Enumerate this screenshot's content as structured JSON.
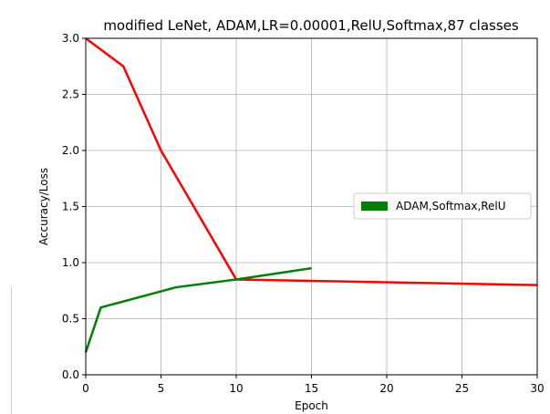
{
  "chart_data": {
    "type": "line",
    "title": "modified LeNet, ADAM,LR=0.00001,RelU,Softmax,87 classes",
    "xlabel": "Epoch",
    "ylabel": "Accuracy/Loss",
    "xlim": [
      0,
      30
    ],
    "ylim": [
      0.0,
      3.0
    ],
    "x_ticks": [
      "0",
      "5",
      "10",
      "15",
      "20",
      "25",
      "30"
    ],
    "y_ticks": [
      "0.0",
      "0.5",
      "1.0",
      "1.5",
      "2.0",
      "2.5",
      "3.0"
    ],
    "grid": true,
    "legend": {
      "placement": "right",
      "entries": [
        {
          "label": "ADAM,Softmax,RelU",
          "color": "#008000"
        }
      ]
    },
    "series": [
      {
        "color": "#ff0000",
        "x": [
          0,
          2.5,
          5,
          10,
          30
        ],
        "y": [
          3.0,
          2.75,
          2.0,
          0.85,
          0.8
        ]
      },
      {
        "name": "ADAM,Softmax,RelU",
        "color": "#008000",
        "x": [
          0,
          1,
          6,
          10,
          15
        ],
        "y": [
          0.2,
          0.6,
          0.78,
          0.85,
          0.95
        ]
      }
    ]
  }
}
